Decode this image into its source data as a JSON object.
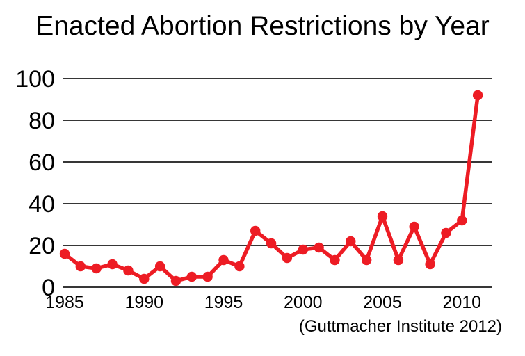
{
  "title": "Enacted Abortion Restrictions by Year",
  "source": "(Guttmacher Institute 2012)",
  "colors": {
    "line": "#ED1C24",
    "grid": "#1a1a1a",
    "text": "#000000",
    "background": "#ffffff"
  },
  "chart_data": {
    "type": "line",
    "title": "Enacted Abortion Restrictions by Year",
    "xlabel": "",
    "ylabel": "",
    "x": [
      1985,
      1986,
      1987,
      1988,
      1989,
      1990,
      1991,
      1992,
      1993,
      1994,
      1995,
      1996,
      1997,
      1998,
      1999,
      2000,
      2001,
      2002,
      2003,
      2004,
      2005,
      2006,
      2007,
      2008,
      2009,
      2010,
      2011
    ],
    "values": [
      16,
      10,
      9,
      11,
      8,
      4,
      10,
      3,
      5,
      5,
      13,
      10,
      27,
      21,
      14,
      18,
      19,
      13,
      22,
      13,
      34,
      13,
      29,
      11,
      26,
      32,
      92
    ],
    "ylim": [
      0,
      100
    ],
    "yticks": [
      0,
      20,
      40,
      60,
      80,
      100
    ],
    "xticks": [
      1985,
      1990,
      1995,
      2000,
      2005,
      2010
    ],
    "grid": true,
    "legend": false,
    "annotation": "(Guttmacher Institute 2012)",
    "line_color": "#ED1C24",
    "marker": "circle"
  }
}
